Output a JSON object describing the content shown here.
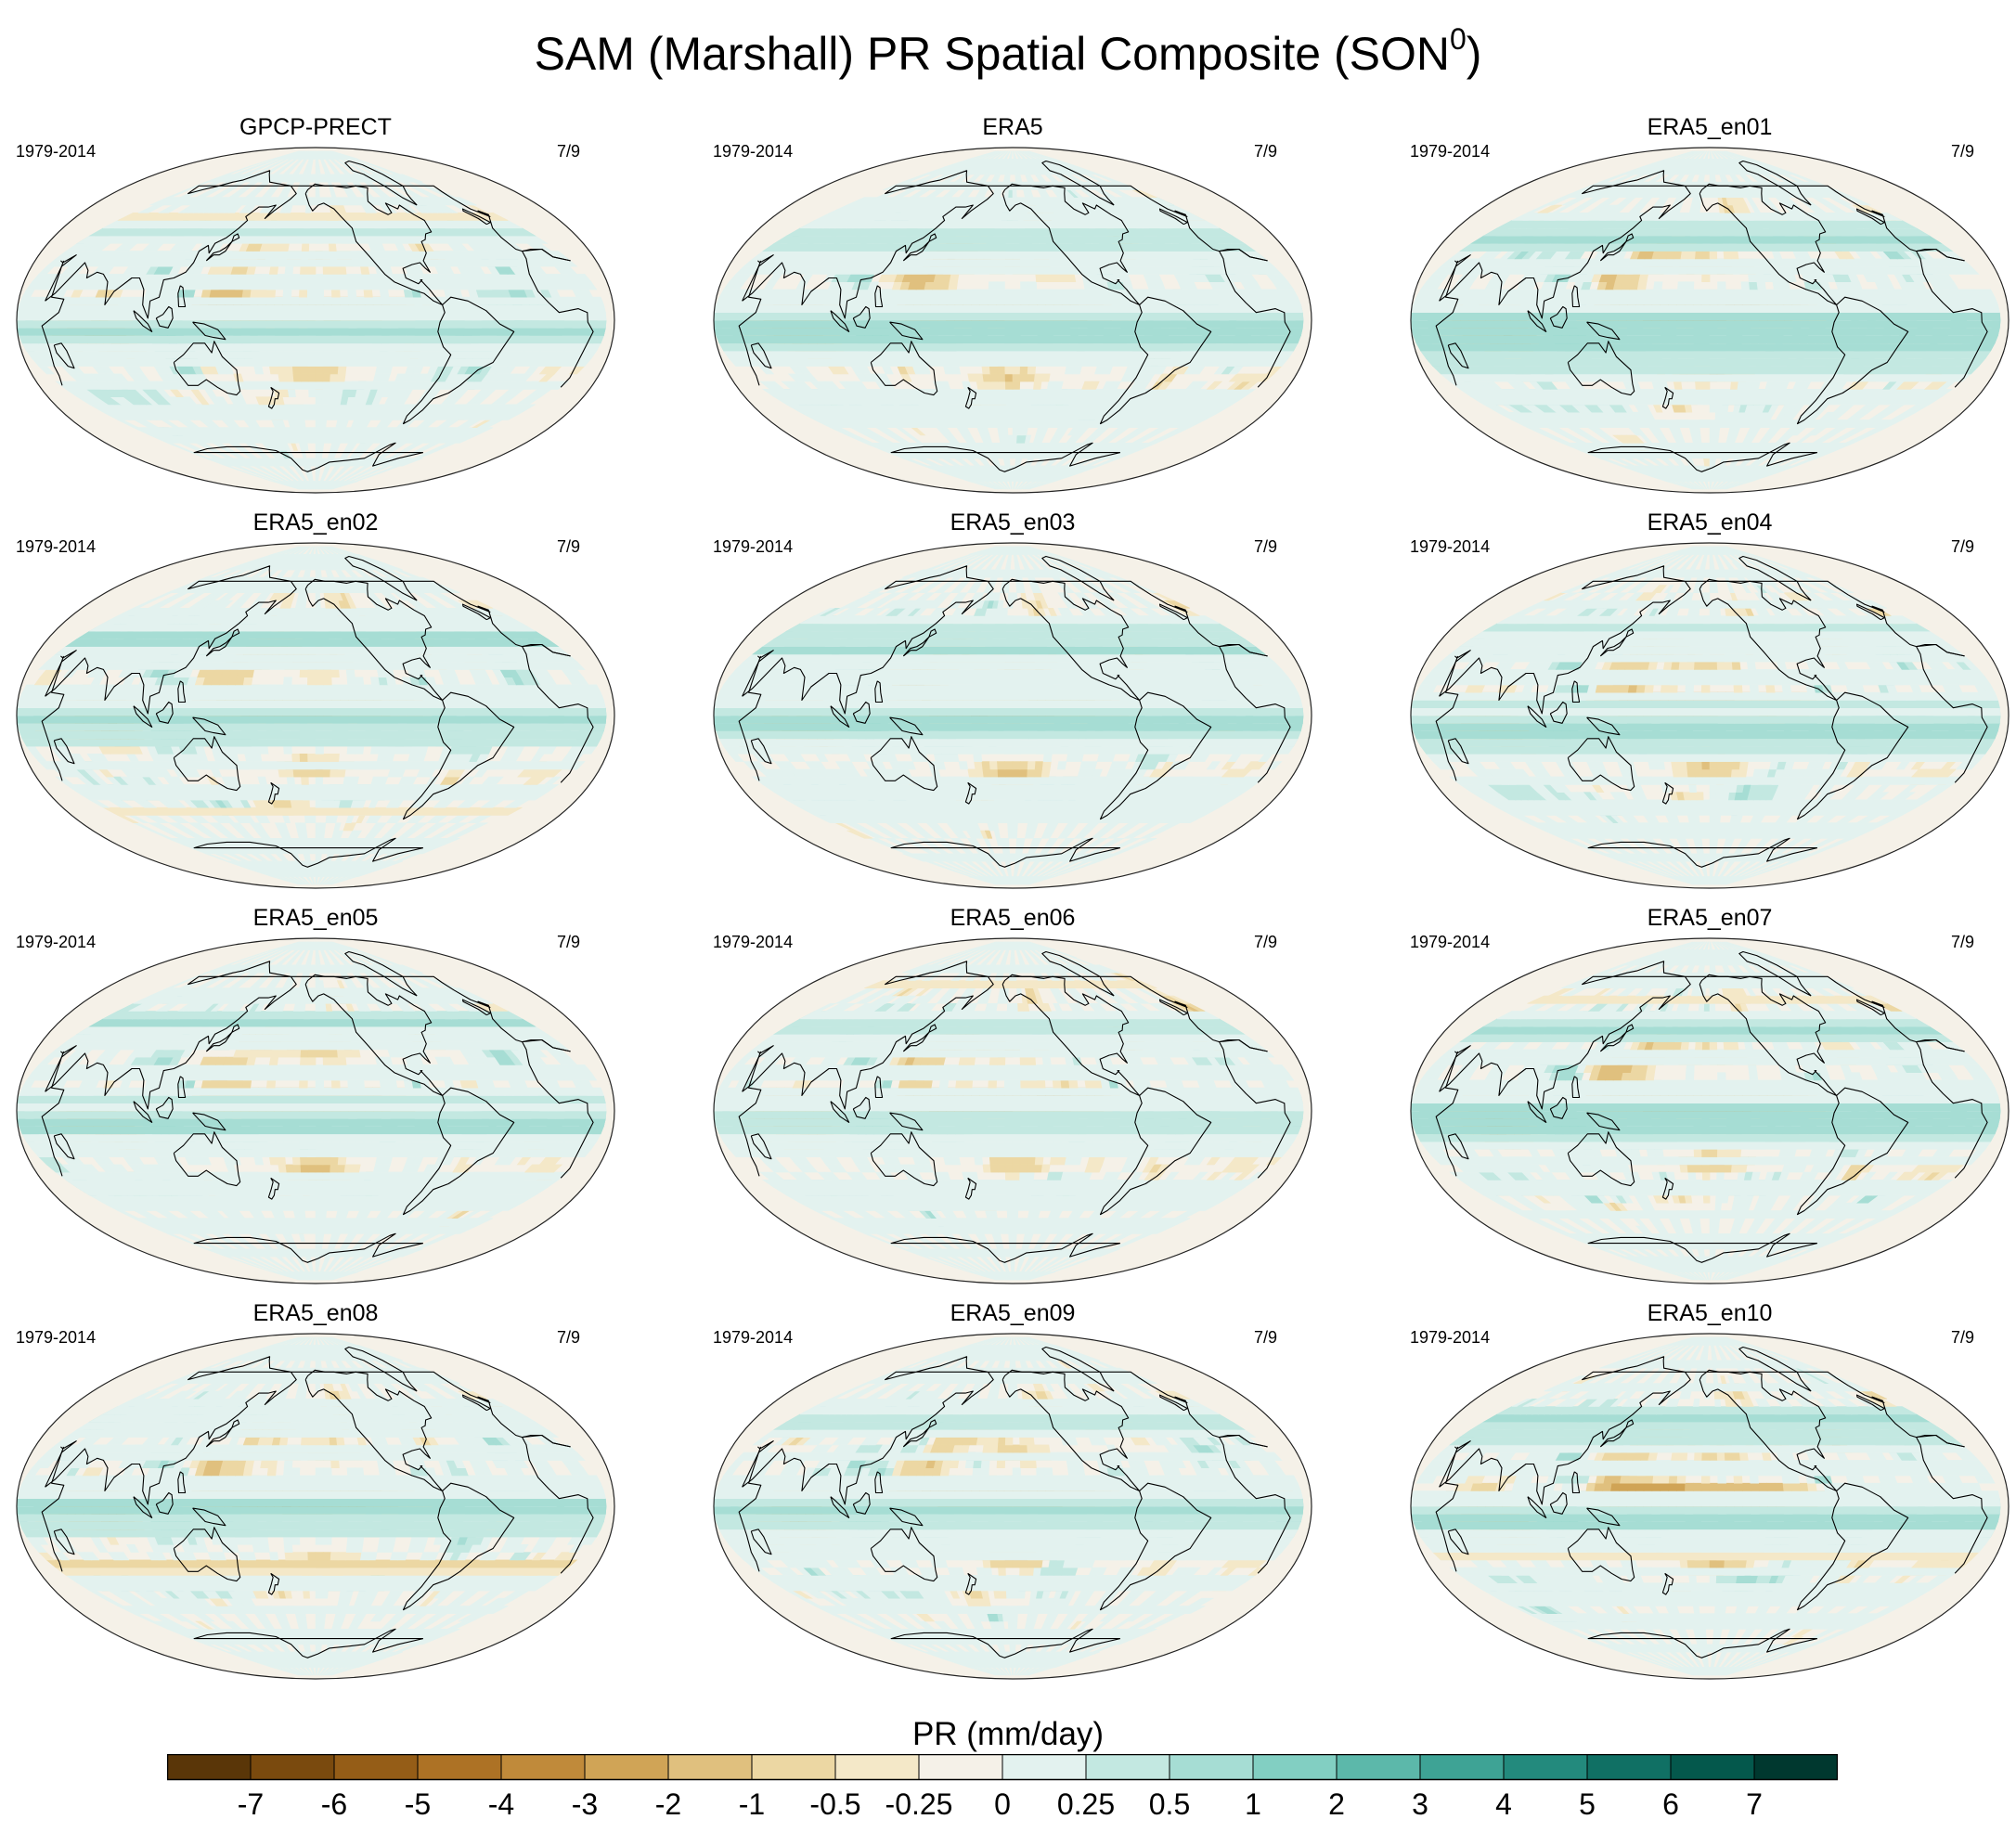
{
  "figure": {
    "title": "SAM (Marshall) PR Spatial Composite (SON",
    "title_sup": "0",
    "title_close": ")"
  },
  "chart_data": {
    "type": "heatmap",
    "projection": "robinson",
    "title": "SAM (Marshall) PR Spatial Composite (SON0)",
    "panels": [
      {
        "name": "GPCP-PRECT",
        "period": "1979-2014",
        "count": "7/9"
      },
      {
        "name": "ERA5",
        "period": "1979-2014",
        "count": "7/9"
      },
      {
        "name": "ERA5_en01",
        "period": "1979-2014",
        "count": "7/9"
      },
      {
        "name": "ERA5_en02",
        "period": "1979-2014",
        "count": "7/9"
      },
      {
        "name": "ERA5_en03",
        "period": "1979-2014",
        "count": "7/9"
      },
      {
        "name": "ERA5_en04",
        "period": "1979-2014",
        "count": "7/9"
      },
      {
        "name": "ERA5_en05",
        "period": "1979-2014",
        "count": "7/9"
      },
      {
        "name": "ERA5_en06",
        "period": "1979-2014",
        "count": "7/9"
      },
      {
        "name": "ERA5_en07",
        "period": "1979-2014",
        "count": "7/9"
      },
      {
        "name": "ERA5_en08",
        "period": "1979-2014",
        "count": "7/9"
      },
      {
        "name": "ERA5_en09",
        "period": "1979-2014",
        "count": "7/9"
      },
      {
        "name": "ERA5_en10",
        "period": "1979-2014",
        "count": "7/9"
      }
    ],
    "colorbar": {
      "label": "PR (mm/day)",
      "levels": [
        "-7",
        "-6",
        "-5",
        "-4",
        "-3",
        "-2",
        "-1",
        "-0.5",
        "-0.25",
        "0",
        "0.25",
        "0.5",
        "1",
        "2",
        "3",
        "4",
        "5",
        "6",
        "7"
      ],
      "colors": [
        "#5a3608",
        "#7a4a0e",
        "#955d17",
        "#ad7225",
        "#c08a3a",
        "#d0a456",
        "#e0c07e",
        "#ecd7a3",
        "#f4e8c8",
        "#f5f1e8",
        "#e3f2ef",
        "#c3e8e1",
        "#a6ddd4",
        "#82cfc2",
        "#5cb8aa",
        "#3ea395",
        "#238a7d",
        "#107064",
        "#04584c",
        "#00382f"
      ]
    }
  }
}
